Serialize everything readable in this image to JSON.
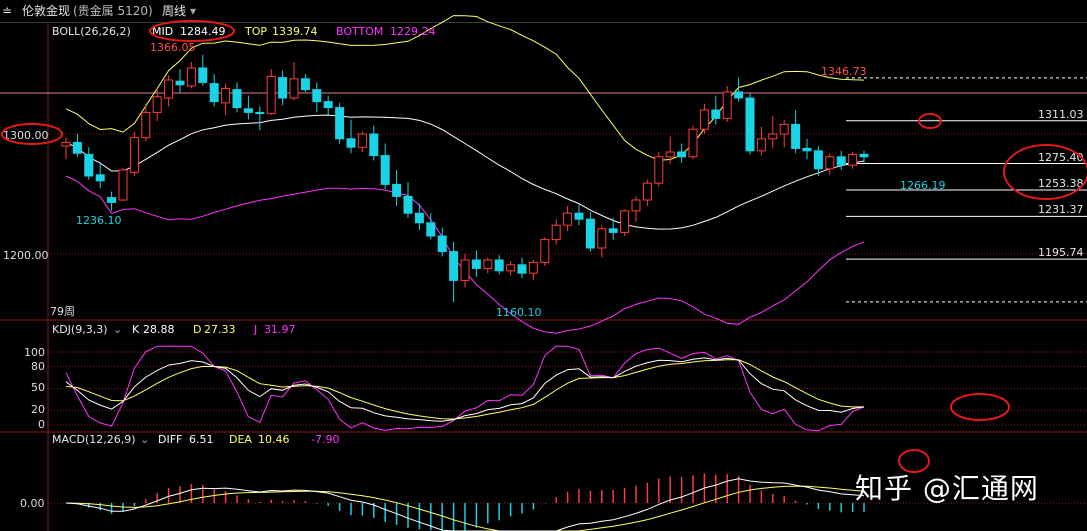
{
  "header": {
    "menu_glyph": "≐",
    "instrument": "伦敦金现",
    "meta": "(贵金属 5120)",
    "period": "周线"
  },
  "watermark": "知乎 @汇通网",
  "colors": {
    "up": "#ff3b3b",
    "down": "#19d3e6",
    "boll_mid": "#ffffff",
    "boll_top": "#ffff66",
    "boll_bottom": "#ff33ff",
    "k": "#ffffff",
    "d": "#ffff66",
    "j": "#ff33ff",
    "grid": "#8b1a1a",
    "annotation": "#e21a1a"
  },
  "chart_data": [
    {
      "type": "candlestick",
      "indicator": "BOLL(26,26,2)",
      "legend": {
        "name": "BOLL(26,26,2)",
        "mid_label": "MID",
        "mid": "1284.49",
        "top_label": "TOP",
        "top": "1339.74",
        "bottom_label": "BOTTOM",
        "bottom": "1229.24"
      },
      "y_ticks": [
        "1300.00",
        "1200.00"
      ],
      "ylim": [
        1150,
        1385
      ],
      "bar_count_label": "79周",
      "price_labels": {
        "high1": "1366.05",
        "low1": "1236.10",
        "low2": "1160.10",
        "high2": "1346.73",
        "low3": "1266.19"
      },
      "fib_levels": [
        "1311.03",
        "1275.40",
        "1253.38",
        "1231.37",
        "1195.74"
      ],
      "candles": [
        {
          "o": 1290,
          "h": 1297,
          "l": 1279,
          "c": 1293
        },
        {
          "o": 1293,
          "h": 1300,
          "l": 1281,
          "c": 1284
        },
        {
          "o": 1283,
          "h": 1289,
          "l": 1262,
          "c": 1265
        },
        {
          "o": 1266,
          "h": 1276,
          "l": 1255,
          "c": 1261
        },
        {
          "o": 1247,
          "h": 1252,
          "l": 1236,
          "c": 1243
        },
        {
          "o": 1245,
          "h": 1272,
          "l": 1244,
          "c": 1270
        },
        {
          "o": 1268,
          "h": 1302,
          "l": 1265,
          "c": 1297
        },
        {
          "o": 1297,
          "h": 1325,
          "l": 1294,
          "c": 1318
        },
        {
          "o": 1318,
          "h": 1338,
          "l": 1311,
          "c": 1331
        },
        {
          "o": 1330,
          "h": 1349,
          "l": 1323,
          "c": 1345
        },
        {
          "o": 1344,
          "h": 1354,
          "l": 1334,
          "c": 1341
        },
        {
          "o": 1340,
          "h": 1360,
          "l": 1338,
          "c": 1355
        },
        {
          "o": 1355,
          "h": 1366,
          "l": 1340,
          "c": 1343
        },
        {
          "o": 1342,
          "h": 1350,
          "l": 1323,
          "c": 1327
        },
        {
          "o": 1326,
          "h": 1342,
          "l": 1316,
          "c": 1338
        },
        {
          "o": 1337,
          "h": 1343,
          "l": 1318,
          "c": 1322
        },
        {
          "o": 1321,
          "h": 1332,
          "l": 1312,
          "c": 1318
        },
        {
          "o": 1318,
          "h": 1323,
          "l": 1303,
          "c": 1317
        },
        {
          "o": 1317,
          "h": 1354,
          "l": 1316,
          "c": 1348
        },
        {
          "o": 1347,
          "h": 1353,
          "l": 1324,
          "c": 1330
        },
        {
          "o": 1330,
          "h": 1360,
          "l": 1328,
          "c": 1346
        },
        {
          "o": 1346,
          "h": 1350,
          "l": 1335,
          "c": 1337
        },
        {
          "o": 1337,
          "h": 1343,
          "l": 1318,
          "c": 1327
        },
        {
          "o": 1327,
          "h": 1332,
          "l": 1315,
          "c": 1322
        },
        {
          "o": 1322,
          "h": 1326,
          "l": 1292,
          "c": 1296
        },
        {
          "o": 1296,
          "h": 1312,
          "l": 1284,
          "c": 1289
        },
        {
          "o": 1289,
          "h": 1302,
          "l": 1285,
          "c": 1300
        },
        {
          "o": 1300,
          "h": 1307,
          "l": 1278,
          "c": 1282
        },
        {
          "o": 1282,
          "h": 1292,
          "l": 1254,
          "c": 1258
        },
        {
          "o": 1258,
          "h": 1270,
          "l": 1240,
          "c": 1248
        },
        {
          "o": 1248,
          "h": 1260,
          "l": 1230,
          "c": 1234
        },
        {
          "o": 1234,
          "h": 1242,
          "l": 1220,
          "c": 1226
        },
        {
          "o": 1226,
          "h": 1234,
          "l": 1212,
          "c": 1215
        },
        {
          "o": 1215,
          "h": 1222,
          "l": 1198,
          "c": 1202
        },
        {
          "o": 1202,
          "h": 1210,
          "l": 1160,
          "c": 1178
        },
        {
          "o": 1178,
          "h": 1200,
          "l": 1172,
          "c": 1195
        },
        {
          "o": 1195,
          "h": 1203,
          "l": 1181,
          "c": 1188
        },
        {
          "o": 1188,
          "h": 1197,
          "l": 1184,
          "c": 1195
        },
        {
          "o": 1195,
          "h": 1199,
          "l": 1183,
          "c": 1186
        },
        {
          "o": 1186,
          "h": 1194,
          "l": 1182,
          "c": 1191
        },
        {
          "o": 1191,
          "h": 1197,
          "l": 1180,
          "c": 1184
        },
        {
          "o": 1184,
          "h": 1195,
          "l": 1178,
          "c": 1193
        },
        {
          "o": 1193,
          "h": 1214,
          "l": 1190,
          "c": 1212
        },
        {
          "o": 1212,
          "h": 1229,
          "l": 1208,
          "c": 1224
        },
        {
          "o": 1224,
          "h": 1240,
          "l": 1219,
          "c": 1234
        },
        {
          "o": 1234,
          "h": 1242,
          "l": 1224,
          "c": 1229
        },
        {
          "o": 1229,
          "h": 1235,
          "l": 1202,
          "c": 1205
        },
        {
          "o": 1205,
          "h": 1224,
          "l": 1197,
          "c": 1221
        },
        {
          "o": 1221,
          "h": 1230,
          "l": 1212,
          "c": 1218
        },
        {
          "o": 1218,
          "h": 1237,
          "l": 1215,
          "c": 1236
        },
        {
          "o": 1236,
          "h": 1248,
          "l": 1227,
          "c": 1245
        },
        {
          "o": 1245,
          "h": 1262,
          "l": 1240,
          "c": 1259
        },
        {
          "o": 1259,
          "h": 1285,
          "l": 1256,
          "c": 1281
        },
        {
          "o": 1281,
          "h": 1298,
          "l": 1275,
          "c": 1285
        },
        {
          "o": 1285,
          "h": 1292,
          "l": 1276,
          "c": 1281
        },
        {
          "o": 1281,
          "h": 1307,
          "l": 1279,
          "c": 1304
        },
        {
          "o": 1304,
          "h": 1325,
          "l": 1300,
          "c": 1320
        },
        {
          "o": 1320,
          "h": 1332,
          "l": 1308,
          "c": 1313
        },
        {
          "o": 1313,
          "h": 1340,
          "l": 1310,
          "c": 1335
        },
        {
          "o": 1335,
          "h": 1347,
          "l": 1327,
          "c": 1330
        },
        {
          "o": 1330,
          "h": 1334,
          "l": 1283,
          "c": 1286
        },
        {
          "o": 1286,
          "h": 1306,
          "l": 1282,
          "c": 1296
        },
        {
          "o": 1296,
          "h": 1315,
          "l": 1288,
          "c": 1300
        },
        {
          "o": 1300,
          "h": 1312,
          "l": 1289,
          "c": 1308
        },
        {
          "o": 1308,
          "h": 1320,
          "l": 1284,
          "c": 1288
        },
        {
          "o": 1288,
          "h": 1296,
          "l": 1279,
          "c": 1286
        },
        {
          "o": 1286,
          "h": 1290,
          "l": 1265,
          "c": 1271
        },
        {
          "o": 1271,
          "h": 1284,
          "l": 1266,
          "c": 1281
        },
        {
          "o": 1281,
          "h": 1286,
          "l": 1270,
          "c": 1274
        },
        {
          "o": 1274,
          "h": 1285,
          "l": 1271,
          "c": 1283
        },
        {
          "o": 1283,
          "h": 1286,
          "l": 1276,
          "c": 1281
        }
      ]
    },
    {
      "type": "line",
      "indicator": "KDJ(9,3,3)",
      "legend": {
        "name": "KDJ(9,3,3)",
        "k_label": "K",
        "k": "28.88",
        "d_label": "D",
        "d": "27.33",
        "j_label": "J",
        "j": "31.97"
      },
      "y_ticks": [
        "100",
        "80",
        "50",
        "20",
        "0"
      ],
      "ylim": [
        -10,
        110
      ]
    },
    {
      "type": "bar",
      "indicator": "MACD(12,26,9)",
      "legend": {
        "name": "MACD(12,26,9)",
        "diff_label": "DIFF",
        "diff": "6.51",
        "dea_label": "DEA",
        "dea": "10.46",
        "macd": "-7.90"
      },
      "y_ticks": [
        "0.00"
      ]
    }
  ]
}
